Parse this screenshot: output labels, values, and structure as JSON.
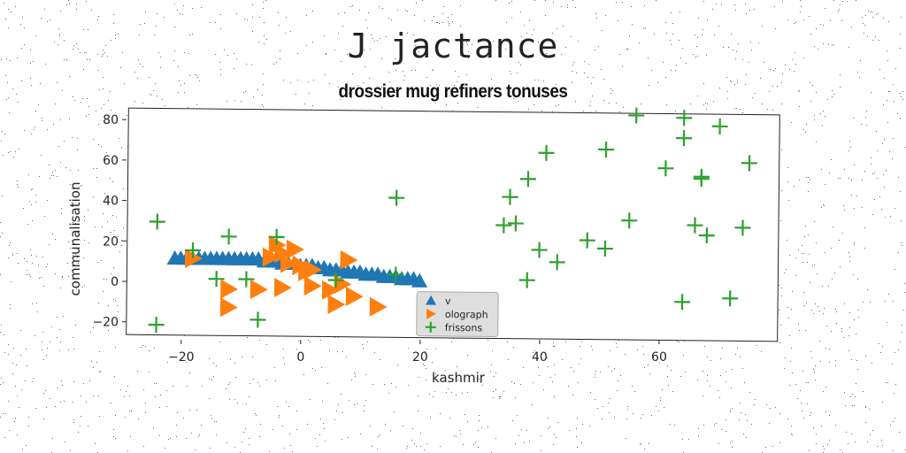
{
  "figure": {
    "title": "J jactance"
  },
  "chart_data": {
    "type": "scatter",
    "title": "drossier mug refiners tonuses",
    "xlabel": "kashmir",
    "ylabel": "communalisation",
    "xlim": [
      -29,
      80
    ],
    "ylim": [
      -28,
      84
    ],
    "xticks": [
      "−20",
      "0",
      "20",
      "40",
      "60"
    ],
    "xtick_values": [
      -20,
      0,
      20,
      40,
      60
    ],
    "yticks": [
      "−20",
      "0",
      "20",
      "40",
      "60",
      "80"
    ],
    "ytick_values": [
      -20,
      0,
      20,
      40,
      60,
      80
    ],
    "grid": false,
    "legend_position": "lower-center-right",
    "series": [
      {
        "name": "v",
        "marker": "triangle-up",
        "color": "#1f77b4",
        "points": [
          [
            -21,
            10
          ],
          [
            -20,
            10
          ],
          [
            -19,
            10
          ],
          [
            -18,
            10
          ],
          [
            -17,
            10
          ],
          [
            -16,
            10
          ],
          [
            -15,
            10
          ],
          [
            -14,
            10
          ],
          [
            -13,
            10
          ],
          [
            -12,
            10
          ],
          [
            -11,
            10
          ],
          [
            -10,
            10
          ],
          [
            -9,
            10
          ],
          [
            -8,
            10
          ],
          [
            -7,
            10
          ],
          [
            -6,
            9
          ],
          [
            -5,
            9
          ],
          [
            -4,
            9
          ],
          [
            -3,
            8
          ],
          [
            -2,
            8
          ],
          [
            -1,
            8
          ],
          [
            0,
            7
          ],
          [
            1,
            7
          ],
          [
            2,
            7
          ],
          [
            3,
            6
          ],
          [
            4,
            6
          ],
          [
            5,
            5
          ],
          [
            6,
            5
          ],
          [
            7,
            5
          ],
          [
            8,
            4
          ],
          [
            9,
            4
          ],
          [
            10,
            4
          ],
          [
            11,
            3
          ],
          [
            12,
            3
          ],
          [
            13,
            3
          ],
          [
            14,
            2
          ],
          [
            15,
            2
          ],
          [
            16,
            2
          ],
          [
            17,
            1
          ],
          [
            18,
            1
          ],
          [
            19,
            1
          ],
          [
            20,
            0
          ]
        ]
      },
      {
        "name": "olograph",
        "marker": "triangle-right",
        "color": "#ff7f0e",
        "points": [
          [
            -18,
            10
          ],
          [
            -4,
            17
          ],
          [
            -3,
            13
          ],
          [
            -1,
            15
          ],
          [
            -5,
            11
          ],
          [
            -2,
            8
          ],
          [
            0,
            7
          ],
          [
            1,
            4
          ],
          [
            2,
            5
          ],
          [
            8,
            10
          ],
          [
            -12,
            -5
          ],
          [
            -12,
            -14
          ],
          [
            -7,
            -5
          ],
          [
            -3,
            -4
          ],
          [
            2,
            -3
          ],
          [
            5,
            -5
          ],
          [
            7,
            -2
          ],
          [
            9,
            -8
          ],
          [
            6,
            -12
          ],
          [
            13,
            -13
          ]
        ]
      },
      {
        "name": "frissons",
        "marker": "plus",
        "color": "#2ca02c",
        "points": [
          [
            -24,
            28
          ],
          [
            -18,
            14
          ],
          [
            -12,
            21
          ],
          [
            -4,
            21
          ],
          [
            -14,
            0
          ],
          [
            -9,
            0
          ],
          [
            6,
            0
          ],
          [
            16,
            3
          ],
          [
            -7,
            -20
          ],
          [
            -24,
            -23
          ],
          [
            16,
            41
          ],
          [
            34,
            28
          ],
          [
            35,
            42
          ],
          [
            36,
            29
          ],
          [
            38,
            51
          ],
          [
            38,
            1
          ],
          [
            40,
            16
          ],
          [
            41,
            64
          ],
          [
            43,
            10
          ],
          [
            48,
            21
          ],
          [
            51,
            17
          ],
          [
            51,
            66
          ],
          [
            55,
            31
          ],
          [
            56,
            83
          ],
          [
            61,
            57
          ],
          [
            64,
            82
          ],
          [
            64,
            72
          ],
          [
            64,
            -9
          ],
          [
            66,
            29
          ],
          [
            67,
            52
          ],
          [
            67,
            53
          ],
          [
            68,
            24
          ],
          [
            70,
            78
          ],
          [
            72,
            -7
          ],
          [
            74,
            28
          ],
          [
            75,
            60
          ]
        ]
      }
    ]
  }
}
